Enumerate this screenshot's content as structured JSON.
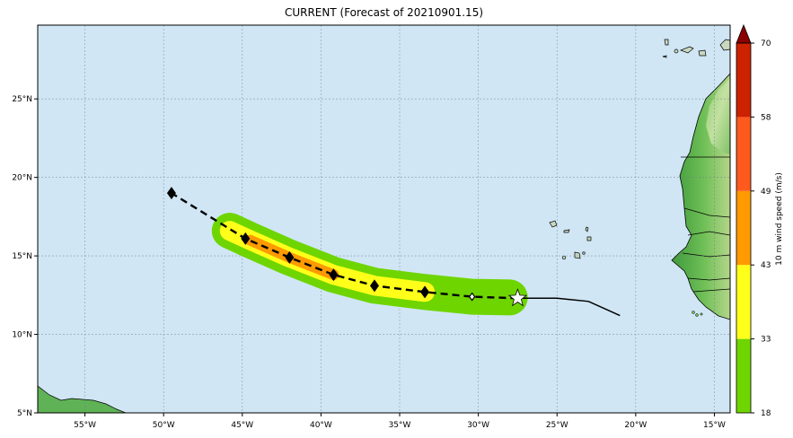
{
  "title": "CURRENT (Forecast of 20210901.15)",
  "map": {
    "lon_range": [
      -58,
      -14
    ],
    "lat_range": [
      5,
      29.7
    ],
    "ocean_color": "#d0e6f5",
    "x_ticks": [
      {
        "value": -55,
        "label": "55°W"
      },
      {
        "value": -50,
        "label": "50°W"
      },
      {
        "value": -45,
        "label": "45°W"
      },
      {
        "value": -40,
        "label": "40°W"
      },
      {
        "value": -35,
        "label": "35°W"
      },
      {
        "value": -30,
        "label": "30°W"
      },
      {
        "value": -25,
        "label": "25°W"
      },
      {
        "value": -20,
        "label": "20°W"
      },
      {
        "value": -15,
        "label": "15°W"
      }
    ],
    "y_ticks": [
      {
        "value": 5,
        "label": "5°N"
      },
      {
        "value": 10,
        "label": "10°N"
      },
      {
        "value": 15,
        "label": "15°N"
      },
      {
        "value": 20,
        "label": "20°N"
      },
      {
        "value": 25,
        "label": "25°N"
      }
    ]
  },
  "colorbar": {
    "label": "10 m wind speed (m/s)",
    "levels": [
      {
        "value": 18,
        "label": "18",
        "color": "#6fd500"
      },
      {
        "value": 33,
        "label": "33",
        "color": "#ffff19"
      },
      {
        "value": 43,
        "label": "43",
        "color": "#ff9a00"
      },
      {
        "value": 49,
        "label": "49",
        "color": "#ff5a1e"
      },
      {
        "value": 58,
        "label": "58",
        "color": "#cc2200"
      },
      {
        "value": 70,
        "label": "70",
        "color": "#8b0000"
      }
    ]
  },
  "track": {
    "observed": [
      {
        "lon": -27.5,
        "lat": 12.3
      },
      {
        "lon": -25.0,
        "lat": 12.3
      },
      {
        "lon": -23.0,
        "lat": 12.1
      },
      {
        "lon": -21.0,
        "lat": 11.2
      }
    ],
    "forecast": [
      {
        "lon": -27.5,
        "lat": 12.3
      },
      {
        "lon": -30.4,
        "lat": 12.4
      },
      {
        "lon": -33.4,
        "lat": 12.7
      },
      {
        "lon": -36.6,
        "lat": 13.1
      },
      {
        "lon": -39.2,
        "lat": 13.8
      },
      {
        "lon": -42.0,
        "lat": 14.9
      },
      {
        "lon": -44.8,
        "lat": 16.1
      },
      {
        "lon": -49.5,
        "lat": 19.0
      }
    ],
    "current_position": {
      "lon": -27.5,
      "lat": 12.3
    },
    "wind_swath": [
      {
        "lon": -28.0,
        "lat": 12.35,
        "wind": 20
      },
      {
        "lon": -30.4,
        "lat": 12.4,
        "wind": 25
      },
      {
        "lon": -33.4,
        "lat": 12.7,
        "wind": 38
      },
      {
        "lon": -36.6,
        "lat": 13.1,
        "wind": 40
      },
      {
        "lon": -39.2,
        "lat": 13.8,
        "wind": 44
      },
      {
        "lon": -42.0,
        "lat": 14.9,
        "wind": 46
      },
      {
        "lon": -44.5,
        "lat": 16.0,
        "wind": 50
      },
      {
        "lon": -45.8,
        "lat": 16.6,
        "wind": 40
      }
    ],
    "markers": [
      {
        "lon": -30.4,
        "lat": 12.4,
        "style": "hollow"
      },
      {
        "lon": -33.4,
        "lat": 12.7,
        "style": "filled"
      },
      {
        "lon": -36.6,
        "lat": 13.1,
        "style": "filled"
      },
      {
        "lon": -39.2,
        "lat": 13.8,
        "style": "filled"
      },
      {
        "lon": -42.0,
        "lat": 14.9,
        "style": "filled"
      },
      {
        "lon": -44.8,
        "lat": 16.1,
        "style": "filled"
      },
      {
        "lon": -49.5,
        "lat": 19.0,
        "style": "filled"
      }
    ]
  }
}
